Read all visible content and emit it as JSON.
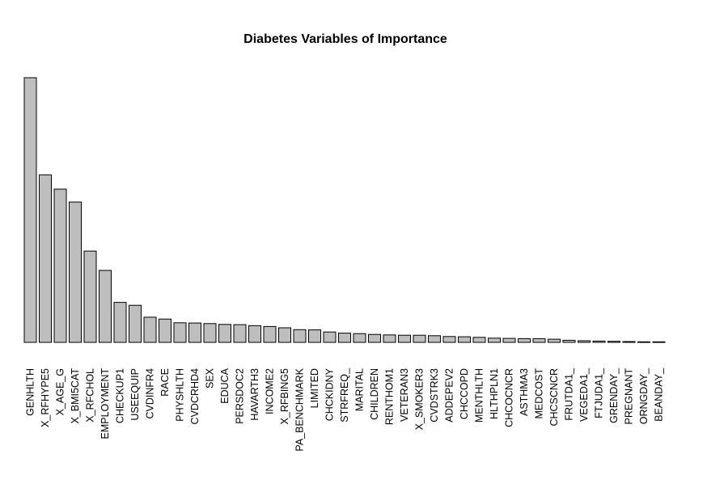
{
  "chart_data": {
    "type": "bar",
    "title": "Diabetes Variables of Importance",
    "xlabel": "",
    "ylabel": "",
    "ylim": [
      0,
      1000
    ],
    "axes_shown": false,
    "grid": false,
    "bar_color": "#bebebe",
    "bar_border_color": "#000000",
    "categories": [
      "GENHLTH",
      "X_RFHYPE5",
      "X_AGE_G",
      "X_BMI5CAT",
      "X_RFCHOL",
      "EMPLOYMENT",
      "CHECKUP1",
      "USEEQUIP",
      "CVDINFR4",
      "RACE",
      "PHYSHLTH",
      "CVDCRHD4",
      "SEX",
      "EDUCA",
      "PERSDOC2",
      "HAVARTH3",
      "INCOME2",
      "X_RFBING5",
      "PA_BENCHMARK",
      "LIMITED",
      "CHCKIDNY",
      "STRFREQ_",
      "MARITAL",
      "CHILDREN",
      "RENTHOM1",
      "VETERAN3",
      "X_SMOKER3",
      "CVDSTRK3",
      "ADDEPEV2",
      "CHCCOPD",
      "MENTHLTH",
      "HLTHPLN1",
      "CHCOCNCR",
      "ASTHMA3",
      "MEDCOST",
      "CHCSCNCR",
      "FRUTDA1_",
      "VEGEDA1_",
      "FTJUDA1_",
      "GRENDAY_",
      "PREGNANT",
      "ORNGDAY_",
      "BEANDAY_"
    ],
    "values": [
      1000,
      633,
      579,
      530,
      345,
      272,
      151,
      140,
      95,
      88,
      74,
      73,
      71,
      68,
      67,
      63,
      60,
      55,
      48,
      47,
      39,
      35,
      33,
      30,
      28,
      27,
      27,
      25,
      22,
      21,
      19,
      16,
      15,
      14,
      14,
      12,
      8,
      6,
      5,
      4,
      3,
      2,
      2
    ]
  }
}
